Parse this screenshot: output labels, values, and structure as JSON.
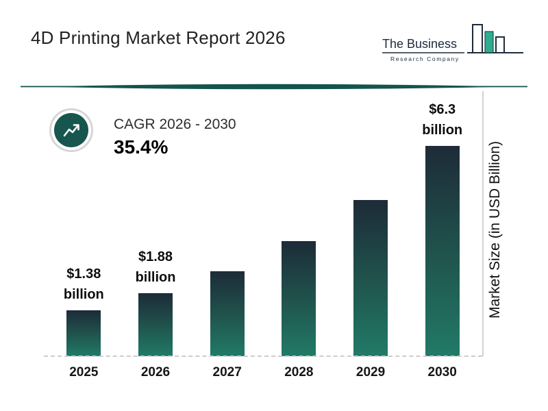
{
  "header": {
    "title": "4D Printing Market Report 2026",
    "logo": {
      "line1": "The Business",
      "line2": "Research Company"
    }
  },
  "cagr": {
    "label": "CAGR 2026 - 2030",
    "value": "35.4%"
  },
  "chart_data": {
    "type": "bar",
    "title": "4D Printing Market Report 2026",
    "categories": [
      "2025",
      "2026",
      "2027",
      "2028",
      "2029",
      "2030"
    ],
    "values": [
      1.38,
      1.88,
      2.55,
      3.45,
      4.67,
      6.3
    ],
    "bar_labels": [
      "$1.38 billion",
      "$1.88 billion",
      "",
      "",
      "",
      "$6.3 billion"
    ],
    "xlabel": "",
    "ylabel": "Market Size (in USD Billion)",
    "ylim": [
      0,
      6.8
    ],
    "legend": "none",
    "grid": "off",
    "colors": {
      "bar_gradient_top": "#1d2b38",
      "bar_gradient_bottom": "#217a67",
      "accent_teal": "#16564e",
      "logo_green": "#2fae8f"
    }
  }
}
